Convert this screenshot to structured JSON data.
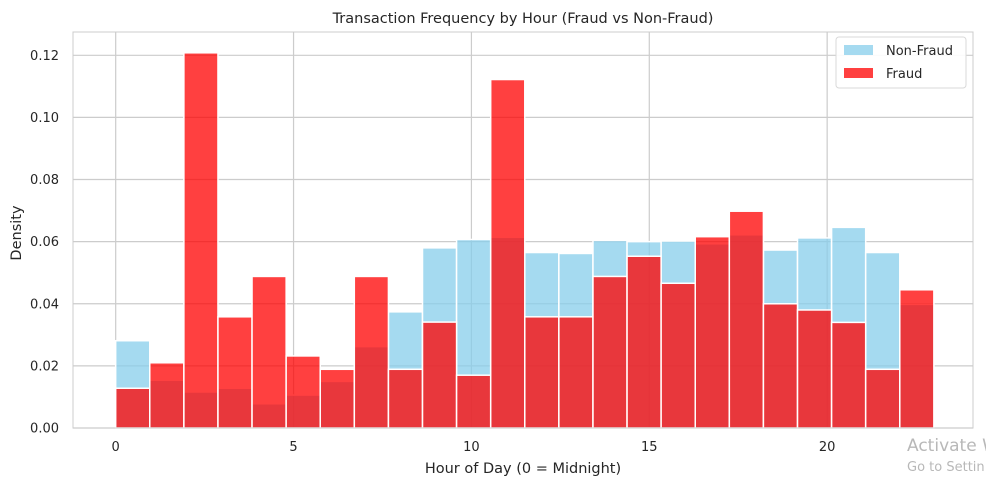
{
  "chart_data": {
    "type": "bar",
    "title": "Transaction Frequency by Hour (Fraud vs Non-Fraud)",
    "xlabel": "Hour of Day (0 = Midnight)",
    "ylabel": "Density",
    "xlim": [
      -1.2,
      24.1
    ],
    "ylim": [
      0,
      0.1275
    ],
    "x_ticks": [
      0,
      5,
      10,
      15,
      20
    ],
    "y_ticks": [
      0.0,
      0.02,
      0.04,
      0.06,
      0.08,
      0.1,
      0.12
    ],
    "grid": true,
    "legend_position": "upper right",
    "bin_edges": [
      0,
      0.958,
      1.917,
      2.875,
      3.833,
      4.792,
      5.75,
      6.708,
      7.667,
      8.625,
      9.583,
      10.542,
      11.5,
      12.458,
      13.417,
      14.375,
      15.333,
      16.292,
      17.25,
      18.208,
      19.167,
      20.125,
      21.083,
      22.042,
      23
    ],
    "series": [
      {
        "name": "Non-Fraud",
        "color": "#87ceeb",
        "values": [
          0.0281,
          0.0154,
          0.0116,
          0.0128,
          0.0078,
          0.0106,
          0.015,
          0.0262,
          0.0374,
          0.058,
          0.0607,
          0.0614,
          0.0565,
          0.0562,
          0.0604,
          0.06,
          0.0602,
          0.0593,
          0.0622,
          0.0573,
          0.0612,
          0.0646,
          0.0565,
          0.0398
        ]
      },
      {
        "name": "Fraud",
        "color": "#ff0000",
        "values": [
          0.0128,
          0.021,
          0.1208,
          0.0358,
          0.0488,
          0.0232,
          0.0189,
          0.0488,
          0.0189,
          0.0341,
          0.017,
          0.1122,
          0.0358,
          0.0358,
          0.0488,
          0.0553,
          0.0466,
          0.0616,
          0.0698,
          0.04,
          0.038,
          0.034,
          0.0189,
          0.0445
        ]
      }
    ]
  },
  "watermark": {
    "line1": "Activate W",
    "line2": "Go to Settin"
  }
}
